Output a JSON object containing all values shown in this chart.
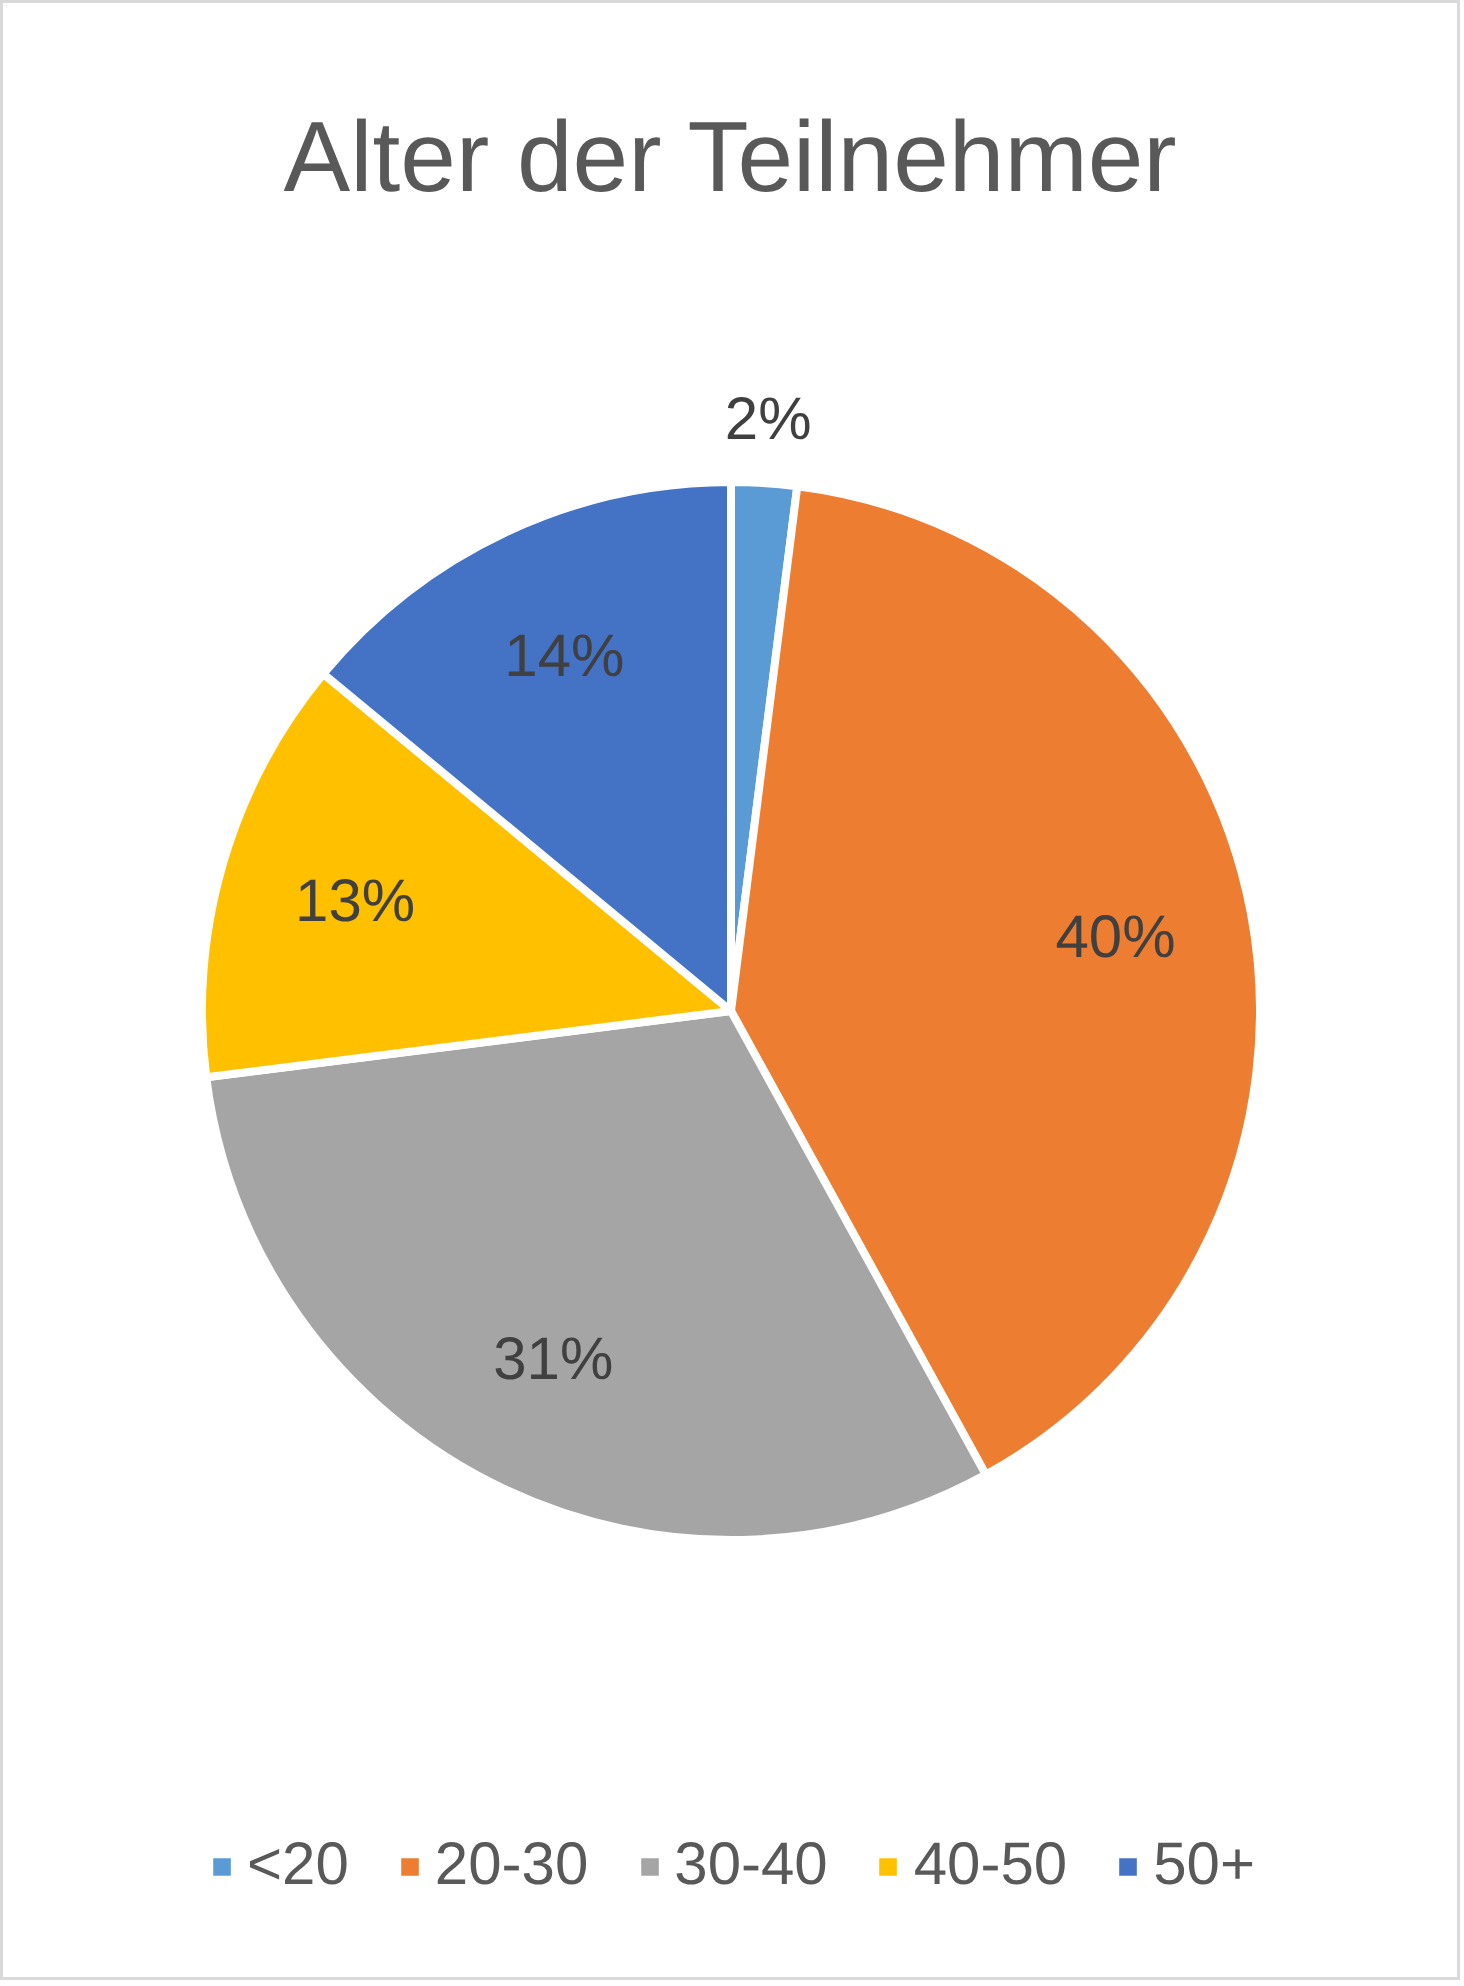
{
  "chart_data": {
    "type": "pie",
    "title": "Alter der Teilnehmer",
    "categories": [
      "<20",
      "20-30",
      "30-40",
      "40-50",
      "50+"
    ],
    "values": [
      2,
      40,
      31,
      13,
      14
    ],
    "colors": [
      "#5b9bd5",
      "#ed7d31",
      "#a5a5a5",
      "#ffc000",
      "#4472c4"
    ],
    "value_labels": [
      "2%",
      "40%",
      "31%",
      "13%",
      "14%"
    ],
    "legend": "bottom"
  }
}
